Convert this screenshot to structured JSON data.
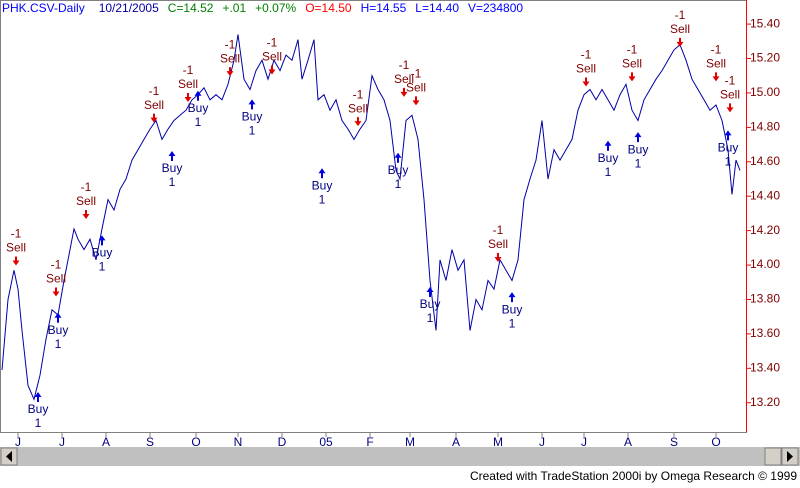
{
  "chart_data": {
    "type": "line",
    "title": "PHK.CSV-Daily",
    "date": "10/21/2005",
    "quote": [
      "C=14.52",
      "+.01",
      "+0.07%",
      "O=14.50",
      "H=14.55",
      "L=14.40",
      "V=234800"
    ],
    "quote_colors": [
      "#008000",
      "#008000",
      "#008000",
      "#ff0000",
      "#0000ff",
      "#0000ff",
      "#0000ff"
    ],
    "footer": "Created with TradeStation 2000i by Omega Research © 1999",
    "color": "#0000a8",
    "axis_color": "#ff0000",
    "x": [
      0,
      3,
      6,
      8,
      10,
      13,
      16,
      19,
      22,
      25,
      28,
      31,
      34,
      36,
      38,
      41,
      44,
      47,
      50,
      53,
      56,
      59,
      62,
      65,
      68,
      71,
      74,
      77,
      80,
      83,
      86,
      89,
      92,
      95,
      98,
      101,
      104,
      107,
      110,
      113,
      116,
      118,
      121,
      124,
      127,
      130,
      133,
      136,
      139,
      142,
      145,
      148,
      150,
      153,
      156,
      158,
      161,
      164,
      167,
      170,
      173,
      176,
      179,
      182,
      185,
      188,
      191,
      194,
      197,
      199,
      202,
      205,
      208,
      211,
      214,
      217,
      219,
      222,
      225,
      228,
      231,
      234,
      237,
      240,
      243,
      246,
      249,
      252,
      255,
      258,
      261,
      264,
      267,
      270,
      273,
      276,
      279,
      282,
      285,
      288,
      291,
      294,
      297,
      300,
      303,
      306,
      309,
      312,
      315,
      318,
      321,
      324,
      327,
      330,
      333,
      336,
      339,
      342,
      345,
      348,
      351,
      354,
      357,
      360,
      363,
      365,
      367,
      369
    ],
    "values": [
      13.39,
      13.8,
      13.97,
      13.86,
      13.62,
      13.3,
      13.22,
      13.36,
      13.57,
      13.74,
      13.71,
      13.91,
      14.09,
      14.21,
      14.15,
      14.09,
      14.15,
      14.03,
      14.21,
      14.38,
      14.32,
      14.44,
      14.5,
      14.61,
      14.67,
      14.73,
      14.79,
      14.84,
      14.73,
      14.79,
      14.84,
      14.87,
      14.9,
      14.96,
      14.99,
      15.03,
      14.96,
      14.99,
      14.96,
      15.05,
      15.19,
      15.34,
      15.08,
      15.02,
      15.13,
      15.19,
      15.08,
      15.19,
      15.13,
      15.22,
      15.19,
      15.31,
      15.08,
      15.19,
      15.31,
      14.96,
      14.99,
      14.9,
      14.96,
      14.84,
      14.79,
      14.73,
      14.79,
      14.84,
      15.1,
      15.02,
      14.96,
      14.84,
      14.55,
      14.5,
      14.84,
      14.87,
      14.73,
      14.38,
      13.91,
      13.62,
      14.03,
      13.91,
      14.09,
      13.97,
      14.03,
      13.62,
      13.8,
      13.74,
      13.91,
      13.86,
      14.03,
      13.97,
      13.91,
      14.03,
      14.38,
      14.5,
      14.61,
      14.84,
      14.5,
      14.67,
      14.61,
      14.67,
      14.73,
      14.9,
      14.99,
      15.02,
      14.96,
      15.02,
      14.96,
      14.9,
      14.99,
      15.05,
      14.9,
      14.84,
      14.96,
      15.02,
      15.08,
      15.13,
      15.19,
      15.25,
      15.28,
      15.19,
      15.08,
      15.02,
      14.96,
      14.9,
      14.93,
      14.84,
      14.67,
      14.41,
      14.61,
      14.55
    ],
    "xlim": [
      -1,
      372
    ],
    "ylim": [
      13.03,
      15.54
    ],
    "yticks": [
      {
        "value": 13.2,
        "label": "13.20"
      },
      {
        "value": 13.4,
        "label": "13.40"
      },
      {
        "value": 13.6,
        "label": "13.60"
      },
      {
        "value": 13.8,
        "label": "13.80"
      },
      {
        "value": 14.0,
        "label": "14.00"
      },
      {
        "value": 14.2,
        "label": "14.20"
      },
      {
        "value": 14.4,
        "label": "14.40"
      },
      {
        "value": 14.6,
        "label": "14.60"
      },
      {
        "value": 14.8,
        "label": "14.80"
      },
      {
        "value": 15.0,
        "label": "15.00"
      },
      {
        "value": 15.2,
        "label": "15.20"
      },
      {
        "value": 15.4,
        "label": "15.40"
      }
    ],
    "xticks": [
      {
        "value": 8,
        "label": "J"
      },
      {
        "value": 30,
        "label": "J"
      },
      {
        "value": 52,
        "label": "A"
      },
      {
        "value": 74,
        "label": "S"
      },
      {
        "value": 97,
        "label": "O"
      },
      {
        "value": 118,
        "label": "N"
      },
      {
        "value": 140,
        "label": "D"
      },
      {
        "value": 162,
        "label": "05"
      },
      {
        "value": 184,
        "label": "F"
      },
      {
        "value": 204,
        "label": "M"
      },
      {
        "value": 227,
        "label": "A"
      },
      {
        "value": 248,
        "label": "M"
      },
      {
        "value": 270,
        "label": "J"
      },
      {
        "value": 291,
        "label": "J"
      },
      {
        "value": 313,
        "label": "A"
      },
      {
        "value": 336,
        "label": "S"
      },
      {
        "value": 357,
        "label": "O"
      }
    ],
    "signals": [
      {
        "label": "Sell",
        "qty": -1,
        "x": 7,
        "y": 13.98
      },
      {
        "label": "Buy",
        "qty": 1,
        "x": 18,
        "y": 13.28
      },
      {
        "label": "Sell",
        "qty": -1,
        "x": 27,
        "y": 13.8
      },
      {
        "label": "Buy",
        "qty": 1,
        "x": 28,
        "y": 13.74
      },
      {
        "label": "Sell",
        "qty": -1,
        "x": 42,
        "y": 14.25
      },
      {
        "label": "Buy",
        "qty": 1,
        "x": 50,
        "y": 14.19
      },
      {
        "label": "Sell",
        "qty": -1,
        "x": 76,
        "y": 14.81
      },
      {
        "label": "Buy",
        "qty": 1,
        "x": 85,
        "y": 14.68
      },
      {
        "label": "Sell",
        "qty": -1,
        "x": 93,
        "y": 14.93
      },
      {
        "label": "Buy",
        "qty": 1,
        "x": 98,
        "y": 15.03
      },
      {
        "label": "Sell",
        "qty": -1,
        "x": 114,
        "y": 15.08
      },
      {
        "label": "Buy",
        "qty": 1,
        "x": 125,
        "y": 14.98
      },
      {
        "label": "Sell",
        "qty": -1,
        "x": 135,
        "y": 15.09
      },
      {
        "label": "Buy",
        "qty": 1,
        "x": 160,
        "y": 14.58
      },
      {
        "label": "Sell",
        "qty": -1,
        "x": 178,
        "y": 14.79
      },
      {
        "label": "Buy",
        "qty": 1,
        "x": 198,
        "y": 14.67
      },
      {
        "label": "Sell",
        "qty": -1,
        "x": 201,
        "y": 14.96
      },
      {
        "label": "Sell",
        "qty": -1,
        "x": 207,
        "y": 14.91
      },
      {
        "label": "Buy",
        "qty": 1,
        "x": 214,
        "y": 13.89
      },
      {
        "label": "Sell",
        "qty": -1,
        "x": 248,
        "y": 14.0
      },
      {
        "label": "Buy",
        "qty": 1,
        "x": 255,
        "y": 13.86
      },
      {
        "label": "Sell",
        "qty": -1,
        "x": 292,
        "y": 15.02
      },
      {
        "label": "Buy",
        "qty": 1,
        "x": 303,
        "y": 14.74
      },
      {
        "label": "Sell",
        "qty": -1,
        "x": 315,
        "y": 15.05
      },
      {
        "label": "Buy",
        "qty": 1,
        "x": 318,
        "y": 14.79
      },
      {
        "label": "Sell",
        "qty": -1,
        "x": 339,
        "y": 15.25
      },
      {
        "label": "Sell",
        "qty": -1,
        "x": 357,
        "y": 15.05
      },
      {
        "label": "Buy",
        "qty": 1,
        "x": 363,
        "y": 14.8
      },
      {
        "label": "Sell",
        "qty": -1,
        "x": 364,
        "y": 14.87
      }
    ],
    "signal_colors": {
      "Sell": "#e00000",
      "Buy": "#0000e0"
    }
  }
}
